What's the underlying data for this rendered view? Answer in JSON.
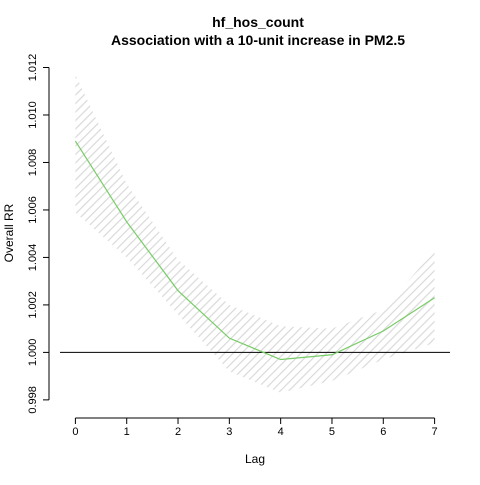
{
  "chart_data": {
    "type": "line",
    "title": "hf_hos_count",
    "subtitle": "Association with a 10-unit increase in PM2.5",
    "xlabel": "Lag",
    "ylabel": "Overall RR",
    "x": [
      0,
      1,
      2,
      3,
      4,
      5,
      6,
      7
    ],
    "xticks": [
      0,
      1,
      2,
      3,
      4,
      5,
      6,
      7
    ],
    "yticks": [
      0.998,
      1.0,
      1.002,
      1.004,
      1.006,
      1.008,
      1.01,
      1.012
    ],
    "ytick_labels": [
      "0.998",
      "1.000",
      "1.002",
      "1.004",
      "1.006",
      "1.008",
      "1.010",
      "1.012"
    ],
    "xlim": [
      -0.3,
      7.3
    ],
    "ylim": [
      0.9977,
      1.0124
    ],
    "reference_line": 1.0,
    "series": [
      {
        "values": [
          1.0089,
          1.0055,
          1.0026,
          1.0006,
          0.9997,
          0.9999,
          1.0009,
          1.0023
        ],
        "lower": [
          1.0059,
          1.004,
          1.0016,
          0.9992,
          0.9983,
          0.9988,
          0.9997,
          1.0004
        ],
        "upper": [
          1.0117,
          1.0071,
          1.0039,
          1.002,
          1.0011,
          1.001,
          1.0018,
          1.0043
        ],
        "color": "#77cc66",
        "band_color": "#d9d9d9"
      }
    ],
    "grid": false,
    "legend": "none"
  }
}
